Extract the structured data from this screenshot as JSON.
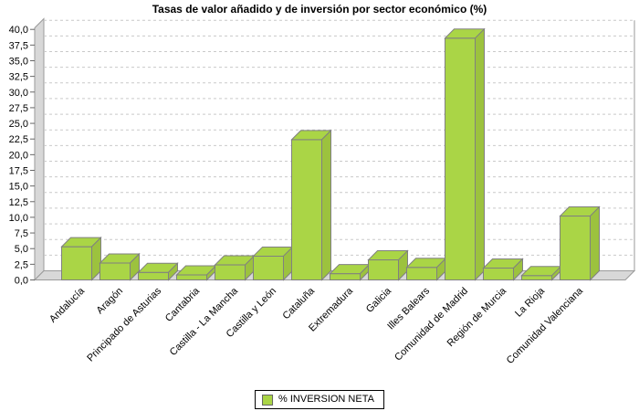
{
  "chart_data": {
    "type": "bar",
    "title": "Tasas de valor añadido y de inversión por sector económico (%)",
    "categories": [
      "Andalucía",
      "Aragón",
      "Principado de Asturias",
      "Cantabria",
      "Castilla - La Mancha",
      "Castilla y León",
      "Cataluña",
      "Extremadura",
      "Galicia",
      "Illes Balears",
      "Comunidad de Madrid",
      "Región de Murcia",
      "La Rioja",
      "Comunidad Valenciana"
    ],
    "series": [
      {
        "name": "% INVERSION NETA",
        "values": [
          5.3,
          2.7,
          1.2,
          0.8,
          2.4,
          3.8,
          22.4,
          1.0,
          3.2,
          2.0,
          38.6,
          1.9,
          0.7,
          10.2
        ]
      }
    ],
    "ylim": [
      0,
      40
    ],
    "y_tick_step": 2.5,
    "y_tick_labels": [
      "0,0",
      "2,5",
      "5,0",
      "7,5",
      "10,0",
      "12,5",
      "15,0",
      "17,5",
      "20,0",
      "22,5",
      "25,0",
      "27,5",
      "30,0",
      "32,5",
      "35,0",
      "37,5",
      "40,0"
    ],
    "grid": "horizontal-dashed",
    "legend_position": "bottom-center",
    "style": "pseudo-3d-bars",
    "colors": {
      "bar_front": "#aad546",
      "bar_top": "#aad546",
      "bar_side": "#9cc23e",
      "bar_outline": "#808080",
      "wall_fill": "#d8d8d8",
      "wall_outline": "#9a9a9a",
      "gridline": "#c9c9c9",
      "tick": "#666666",
      "text": "#000000"
    }
  }
}
